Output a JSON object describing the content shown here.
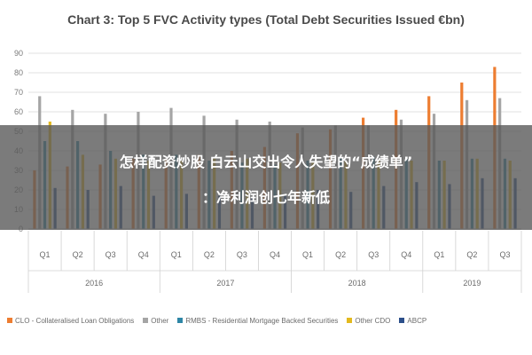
{
  "chart_data": {
    "type": "bar",
    "title": "Chart 3: Top 5 FVC Activity types (Total Debt Securities Issued €bn)",
    "xlabel": "",
    "ylabel": "",
    "ylim": [
      0,
      90
    ],
    "yticks": [
      0,
      10,
      20,
      30,
      40,
      50,
      60,
      70,
      80,
      90
    ],
    "grid": true,
    "legend_position": "bottom",
    "categories": [
      "Q1",
      "Q2",
      "Q3",
      "Q4",
      "Q1",
      "Q2",
      "Q3",
      "Q4",
      "Q1",
      "Q2",
      "Q3",
      "Q4",
      "Q1",
      "Q2",
      "Q3"
    ],
    "groups": [
      {
        "label": "2016",
        "count": 4
      },
      {
        "label": "2017",
        "count": 4
      },
      {
        "label": "2018",
        "count": 4
      },
      {
        "label": "2019",
        "count": 3
      }
    ],
    "series": [
      {
        "name": "CLO - Collateralised Loan Obligations",
        "color": "#ed7d31",
        "values": [
          30,
          32,
          33,
          36,
          36,
          38,
          40,
          42,
          49,
          51,
          57,
          61,
          68,
          75,
          83
        ]
      },
      {
        "name": "Other",
        "color": "#a5a5a5",
        "values": [
          68,
          61,
          59,
          60,
          62,
          58,
          56,
          55,
          52,
          53,
          53,
          56,
          59,
          66,
          67
        ]
      },
      {
        "name": "RMBS - Residential Mortgage Backed Securities",
        "color": "#2e86a6",
        "values": [
          45,
          45,
          40,
          38,
          38,
          35,
          34,
          33,
          35,
          36,
          37,
          36,
          35,
          36,
          36
        ]
      },
      {
        "name": "Other CDO",
        "color": "#e3b91e",
        "values": [
          55,
          38,
          36,
          35,
          35,
          36,
          36,
          34,
          34,
          35,
          35,
          35,
          35,
          36,
          35
        ]
      },
      {
        "name": "ABCP",
        "color": "#2c4f8a",
        "values": [
          21,
          20,
          22,
          17,
          18,
          17,
          16,
          17,
          20,
          19,
          22,
          24,
          23,
          26,
          26
        ]
      }
    ]
  },
  "overlay": {
    "line1": "怎样配资炒股 白云山交出令人失望的“成绩单”",
    "line2": "：净利润创七年新低"
  }
}
